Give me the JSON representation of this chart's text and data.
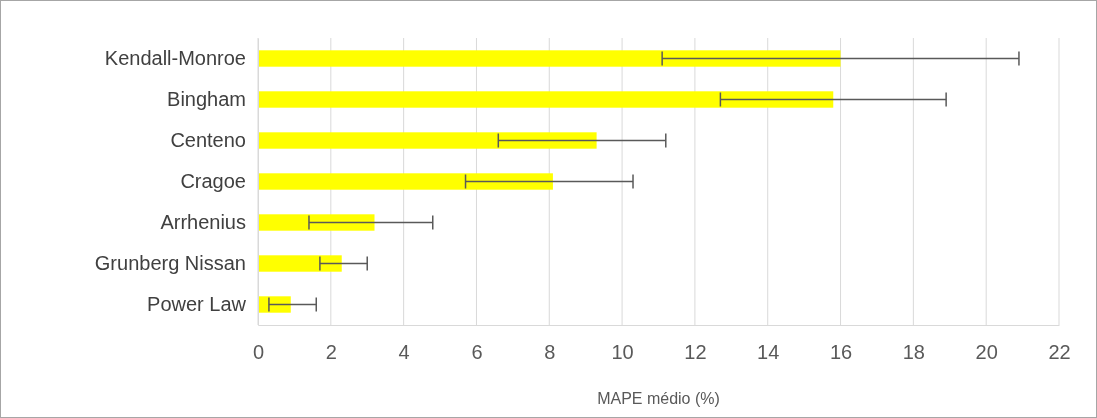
{
  "chart_data": {
    "type": "bar",
    "orientation": "horizontal",
    "xlabel": "MAPE médio (%)",
    "categories": [
      "Kendall-Monroe",
      "Bingham",
      "Centeno",
      "Cragoe",
      "Arrhenius",
      "Grunberg Nissan",
      "Power Law"
    ],
    "values": [
      16.0,
      15.8,
      9.3,
      8.1,
      3.2,
      2.3,
      0.9
    ],
    "errors": [
      [
        11.1,
        20.9
      ],
      [
        12.7,
        18.9
      ],
      [
        6.6,
        11.2
      ],
      [
        5.7,
        10.3
      ],
      [
        1.4,
        4.8
      ],
      [
        1.7,
        3.0
      ],
      [
        0.3,
        1.6
      ]
    ],
    "color": "#ffff00",
    "xlim": [
      0,
      22
    ],
    "xticks": [
      0,
      2,
      4,
      6,
      8,
      10,
      12,
      14,
      16,
      18,
      20,
      22
    ],
    "grid": "x"
  }
}
